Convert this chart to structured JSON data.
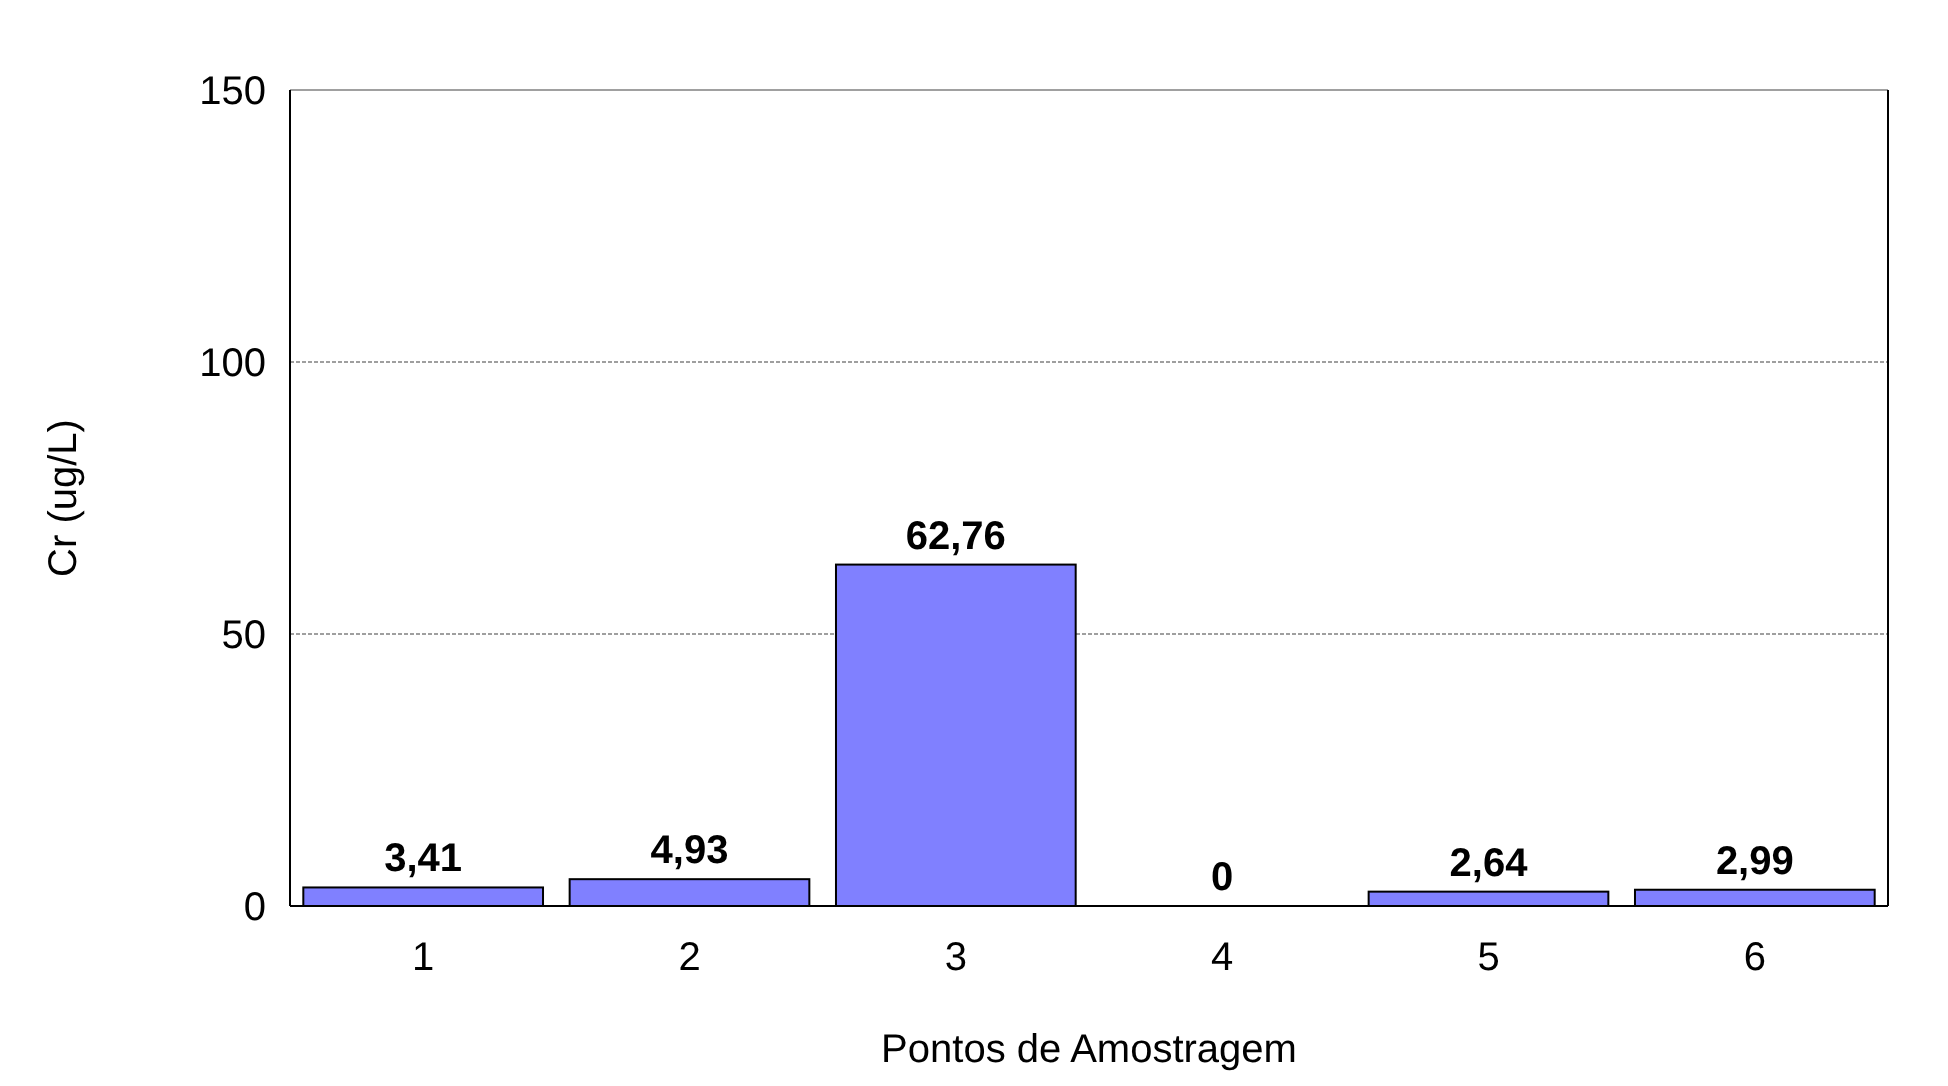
{
  "chart_data": {
    "type": "bar",
    "xlabel": "Pontos de Amostragem",
    "ylabel": "Cr (ug/L)",
    "categories": [
      "1",
      "2",
      "3",
      "4",
      "5",
      "6"
    ],
    "values": [
      3.41,
      4.93,
      62.76,
      0,
      2.64,
      2.99
    ],
    "value_labels": [
      "3,41",
      "4,93",
      "62,76",
      "0",
      "2,64",
      "2,99"
    ],
    "color": "#8080ff",
    "ylim": [
      0,
      150
    ],
    "yticks": [
      0,
      50,
      100,
      150
    ],
    "grid": "y"
  }
}
